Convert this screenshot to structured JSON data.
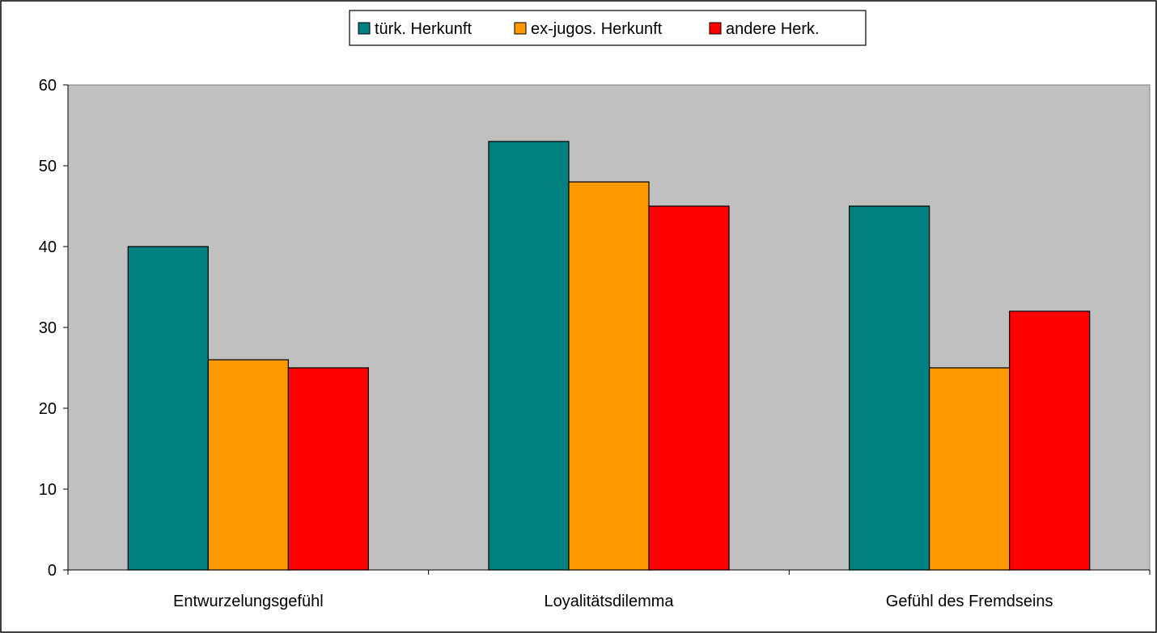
{
  "chart_data": {
    "type": "bar",
    "categories": [
      "Entwurzelungsgefühl",
      "Loyalitätsdilemma",
      "Gefühl des Fremdseins"
    ],
    "series": [
      {
        "name": "türk. Herkunft",
        "values": [
          40,
          53,
          45
        ],
        "color": "#008080"
      },
      {
        "name": "ex-jugos. Herkunft",
        "values": [
          26,
          48,
          25
        ],
        "color": "#FF9900"
      },
      {
        "name": "andere Herk.",
        "values": [
          25,
          45,
          32
        ],
        "color": "#FF0000"
      }
    ],
    "ylim": [
      0,
      60
    ],
    "yticks": [
      0,
      10,
      20,
      30,
      40,
      50,
      60
    ],
    "legend_position": "top",
    "plot_background": "#C0C0C0",
    "grid": false
  }
}
